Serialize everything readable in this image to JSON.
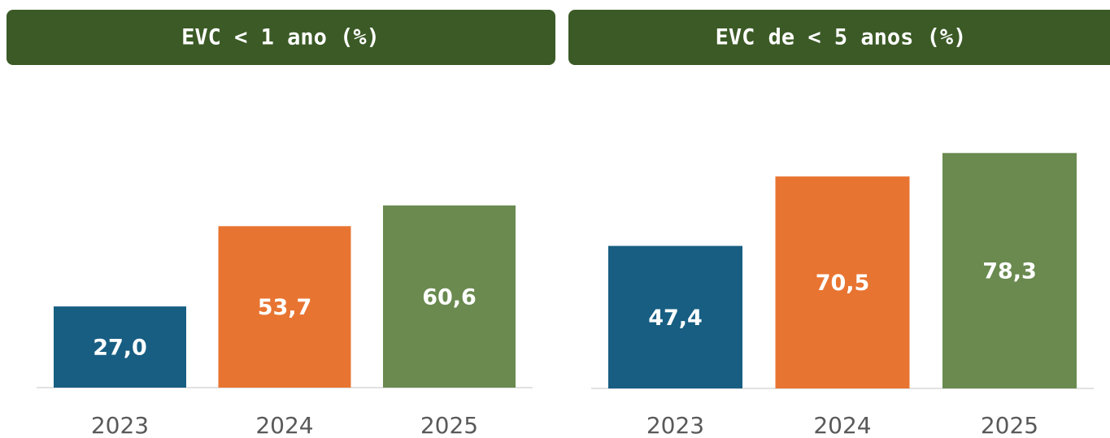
{
  "chart_data": [
    {
      "type": "bar",
      "title": "EVC < 1 ano (%)",
      "categories": [
        "2023",
        "2024",
        "2025"
      ],
      "values": [
        27.0,
        53.7,
        60.6
      ],
      "value_labels": [
        "27,0",
        "53,7",
        "60,6"
      ],
      "colors": [
        "#175e82",
        "#e87431",
        "#6a8a50"
      ],
      "ylim": [
        0,
        100
      ]
    },
    {
      "type": "bar",
      "title": "EVC de < 5 anos (%)",
      "categories": [
        "2023",
        "2024",
        "2025"
      ],
      "values": [
        47.4,
        70.5,
        78.3
      ],
      "value_labels": [
        "47,4",
        "70,5",
        "78,3"
      ],
      "colors": [
        "#175e82",
        "#e87431",
        "#6a8a50"
      ],
      "ylim": [
        0,
        100
      ]
    }
  ]
}
